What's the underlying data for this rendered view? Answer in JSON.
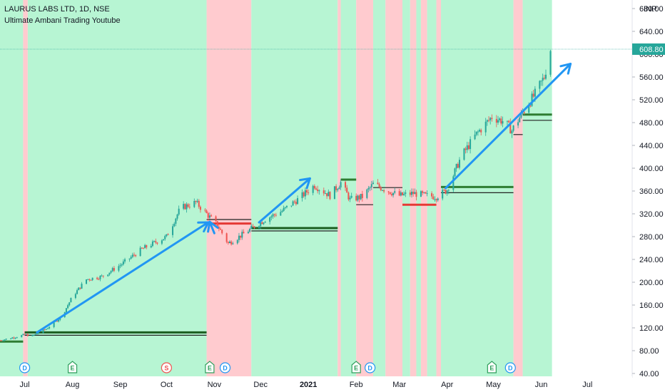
{
  "header": {
    "title": "LAURUS LABS LTD, 1D, NSE",
    "subtitle": "Ultimate Ambani Trading Youtube"
  },
  "chart_data": {
    "type": "candlestick",
    "currency": "INR",
    "last_price": "608.80",
    "last_price_value": 608.8,
    "ylim": [
      35,
      695
    ],
    "y_ticks": [
      40,
      80,
      120,
      160,
      200,
      240,
      280,
      320,
      360,
      400,
      440,
      480,
      520,
      560,
      600,
      640,
      680
    ],
    "y_tick_labels": [
      "40.00",
      "80.00",
      "120.00",
      "160.00",
      "200.00",
      "240.00",
      "280.00",
      "320.00",
      "360.00",
      "400.00",
      "440.00",
      "480.00",
      "520.00",
      "560.00",
      "600.00",
      "640.00",
      "680.00"
    ],
    "x_range": [
      "2020-06-15",
      "2021-07-30"
    ],
    "x_ticks": [
      {
        "label": "Jul",
        "date": "2020-07-01",
        "bold": false
      },
      {
        "label": "Aug",
        "date": "2020-08-01",
        "bold": false
      },
      {
        "label": "Sep",
        "date": "2020-09-01",
        "bold": false
      },
      {
        "label": "Oct",
        "date": "2020-10-01",
        "bold": false
      },
      {
        "label": "Nov",
        "date": "2020-11-01",
        "bold": false
      },
      {
        "label": "Dec",
        "date": "2020-12-01",
        "bold": false
      },
      {
        "label": "2021",
        "date": "2021-01-01",
        "bold": true
      },
      {
        "label": "Feb",
        "date": "2021-02-01",
        "bold": false
      },
      {
        "label": "Mar",
        "date": "2021-03-01",
        "bold": false
      },
      {
        "label": "Apr",
        "date": "2021-04-01",
        "bold": false
      },
      {
        "label": "May",
        "date": "2021-05-01",
        "bold": false
      },
      {
        "label": "Jun",
        "date": "2021-06-01",
        "bold": false
      },
      {
        "label": "Jul",
        "date": "2021-07-01",
        "bold": false
      }
    ],
    "price_path": [
      [
        "2020-06-15",
        98
      ],
      [
        "2020-06-25",
        104
      ],
      [
        "2020-07-01",
        108
      ],
      [
        "2020-07-06",
        106
      ],
      [
        "2020-07-15",
        118
      ],
      [
        "2020-07-25",
        140
      ],
      [
        "2020-08-01",
        175
      ],
      [
        "2020-08-10",
        205
      ],
      [
        "2020-08-20",
        210
      ],
      [
        "2020-09-01",
        230
      ],
      [
        "2020-09-15",
        258
      ],
      [
        "2020-10-01",
        280
      ],
      [
        "2020-10-10",
        330
      ],
      [
        "2020-10-20",
        340
      ],
      [
        "2020-10-27",
        320
      ],
      [
        "2020-11-03",
        300
      ],
      [
        "2020-11-10",
        268
      ],
      [
        "2020-11-20",
        285
      ],
      [
        "2020-11-26",
        296
      ],
      [
        "2020-12-05",
        312
      ],
      [
        "2020-12-15",
        325
      ],
      [
        "2020-12-25",
        345
      ],
      [
        "2021-01-05",
        370
      ],
      [
        "2021-01-15",
        352
      ],
      [
        "2021-01-22",
        375
      ],
      [
        "2021-01-28",
        345
      ],
      [
        "2021-02-05",
        350
      ],
      [
        "2021-02-12",
        372
      ],
      [
        "2021-02-22",
        360
      ],
      [
        "2021-03-01",
        352
      ],
      [
        "2021-03-10",
        356
      ],
      [
        "2021-03-18",
        352
      ],
      [
        "2021-03-25",
        350
      ],
      [
        "2021-04-01",
        362
      ],
      [
        "2021-04-10",
        420
      ],
      [
        "2021-04-20",
        460
      ],
      [
        "2021-04-30",
        490
      ],
      [
        "2021-05-08",
        482
      ],
      [
        "2021-05-13",
        466
      ],
      [
        "2021-05-20",
        498
      ],
      [
        "2021-05-28",
        530
      ],
      [
        "2021-06-03",
        560
      ],
      [
        "2021-06-07",
        608.8
      ]
    ],
    "zones": [
      {
        "start": "2020-06-15",
        "end": "2020-06-30",
        "signal": "buy"
      },
      {
        "start": "2020-06-30",
        "end": "2020-07-03",
        "signal": "sell"
      },
      {
        "start": "2020-07-03",
        "end": "2020-10-27",
        "signal": "buy"
      },
      {
        "start": "2020-10-27",
        "end": "2020-11-25",
        "signal": "sell"
      },
      {
        "start": "2020-11-25",
        "end": "2021-01-20",
        "signal": "buy"
      },
      {
        "start": "2021-01-20",
        "end": "2021-01-22",
        "signal": "sell"
      },
      {
        "start": "2021-01-22",
        "end": "2021-02-01",
        "signal": "buy"
      },
      {
        "start": "2021-02-01",
        "end": "2021-02-12",
        "signal": "sell"
      },
      {
        "start": "2021-02-12",
        "end": "2021-02-20",
        "signal": "buy"
      },
      {
        "start": "2021-02-20",
        "end": "2021-03-03",
        "signal": "sell"
      },
      {
        "start": "2021-03-03",
        "end": "2021-03-08",
        "signal": "buy"
      },
      {
        "start": "2021-03-08",
        "end": "2021-03-12",
        "signal": "sell"
      },
      {
        "start": "2021-03-12",
        "end": "2021-03-15",
        "signal": "buy"
      },
      {
        "start": "2021-03-15",
        "end": "2021-03-19",
        "signal": "sell"
      },
      {
        "start": "2021-03-19",
        "end": "2021-03-25",
        "signal": "buy"
      },
      {
        "start": "2021-03-25",
        "end": "2021-03-28",
        "signal": "sell"
      },
      {
        "start": "2021-03-28",
        "end": "2021-05-14",
        "signal": "buy"
      },
      {
        "start": "2021-05-14",
        "end": "2021-05-20",
        "signal": "sell"
      },
      {
        "start": "2021-05-20",
        "end": "2021-06-08",
        "signal": "buy"
      }
    ],
    "levels": [
      {
        "start": "2020-06-15",
        "end": "2020-06-30",
        "value": 96,
        "color": "#2e7d32"
      },
      {
        "start": "2020-07-01",
        "end": "2020-10-27",
        "value": 112,
        "color": "#1b5e20"
      },
      {
        "start": "2020-07-01",
        "end": "2020-10-27",
        "value": 107,
        "color": "#222222"
      },
      {
        "start": "2020-10-27",
        "end": "2020-11-25",
        "value": 310,
        "color": "#222222"
      },
      {
        "start": "2020-10-27",
        "end": "2020-11-25",
        "value": 303,
        "color": "#e53935"
      },
      {
        "start": "2020-11-25",
        "end": "2021-01-20",
        "value": 295,
        "color": "#1b5e20"
      },
      {
        "start": "2020-11-25",
        "end": "2021-01-20",
        "value": 290,
        "color": "#222222"
      },
      {
        "start": "2021-01-22",
        "end": "2021-02-01",
        "value": 380,
        "color": "#2e7d32"
      },
      {
        "start": "2021-02-01",
        "end": "2021-02-12",
        "value": 336,
        "color": "#222222"
      },
      {
        "start": "2021-02-12",
        "end": "2021-03-03",
        "value": 366,
        "color": "#222222"
      },
      {
        "start": "2021-03-03",
        "end": "2021-03-25",
        "value": 336,
        "color": "#e53935"
      },
      {
        "start": "2021-03-28",
        "end": "2021-05-14",
        "value": 367,
        "color": "#2e7d32"
      },
      {
        "start": "2021-03-28",
        "end": "2021-05-14",
        "value": 357,
        "color": "#222222"
      },
      {
        "start": "2021-05-14",
        "end": "2021-05-20",
        "value": 459,
        "color": "#222222"
      },
      {
        "start": "2021-05-20",
        "end": "2021-06-08",
        "value": 494,
        "color": "#2e7d32"
      },
      {
        "start": "2021-05-20",
        "end": "2021-06-08",
        "value": 484,
        "color": "#222222"
      }
    ],
    "arrows": [
      {
        "from": [
          "2020-07-09",
          112
        ],
        "to": [
          "2020-10-28",
          305
        ]
      },
      {
        "from": [
          "2020-11-01",
          286
        ],
        "to": [
          "2020-10-29",
          306
        ]
      },
      {
        "from": [
          "2020-11-30",
          305
        ],
        "to": [
          "2021-01-02",
          382
        ]
      },
      {
        "from": [
          "2021-03-31",
          365
        ],
        "to": [
          "2021-06-20",
          583
        ]
      }
    ],
    "events": [
      {
        "letter": "D",
        "date": "2020-07-01",
        "type": "dividend"
      },
      {
        "letter": "E",
        "date": "2020-08-01",
        "type": "earnings"
      },
      {
        "letter": "S",
        "date": "2020-10-01",
        "type": "split"
      },
      {
        "letter": "E",
        "date": "2020-10-29",
        "type": "earnings"
      },
      {
        "letter": "D",
        "date": "2020-11-08",
        "type": "dividend"
      },
      {
        "letter": "E",
        "date": "2021-02-01",
        "type": "earnings"
      },
      {
        "letter": "D",
        "date": "2021-02-10",
        "type": "dividend"
      },
      {
        "letter": "E",
        "date": "2021-04-30",
        "type": "earnings"
      },
      {
        "letter": "D",
        "date": "2021-05-12",
        "type": "dividend"
      }
    ],
    "colors": {
      "buy_zone": "#b7f5d3",
      "sell_zone": "#ffcbcf",
      "up_candle": "#26a69a",
      "down_candle": "#ef5350",
      "arrow": "#2196f3",
      "price_label": "#26a69a",
      "dividend": "#2196f3",
      "earnings": "#2e9e5b",
      "split": "#ef5350"
    }
  }
}
